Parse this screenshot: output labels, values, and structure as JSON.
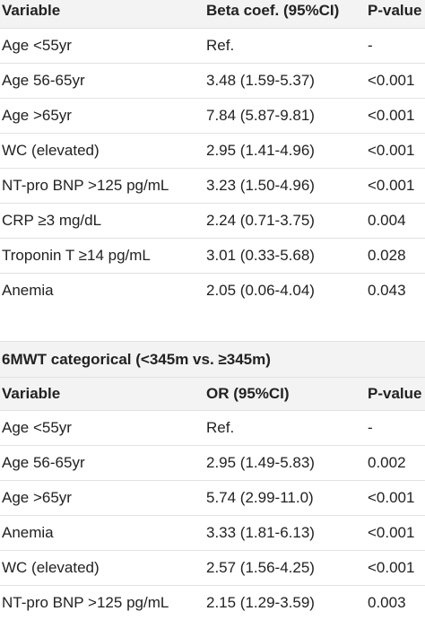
{
  "table1": {
    "header": [
      "Variable",
      "Beta coef. (95%CI)",
      "P-value"
    ],
    "rows": [
      [
        "Age <55yr",
        "Ref.",
        "-"
      ],
      [
        "Age 56-65yr",
        "3.48 (1.59-5.37)",
        "<0.001"
      ],
      [
        "Age >65yr",
        "7.84 (5.87-9.81)",
        "<0.001"
      ],
      [
        "WC (elevated)",
        "2.95 (1.41-4.96)",
        "<0.001"
      ],
      [
        "NT-pro BNP >125 pg/mL",
        "3.23 (1.50-4.96)",
        "<0.001"
      ],
      [
        "CRP ≥3 mg/dL",
        "2.24 (0.71-3.75)",
        "0.004"
      ],
      [
        "Troponin T ≥14 pg/mL",
        "3.01 (0.33-5.68)",
        "0.028"
      ],
      [
        "Anemia",
        "2.05 (0.06-4.04)",
        "0.043"
      ]
    ]
  },
  "table2": {
    "title": "6MWT categorical (<345m vs. ≥345m)",
    "header": [
      "Variable",
      "OR (95%CI)",
      "P-value"
    ],
    "rows": [
      [
        "Age <55yr",
        "Ref.",
        "-"
      ],
      [
        "Age 56-65yr",
        "2.95 (1.49-5.83)",
        "0.002"
      ],
      [
        "Age >65yr",
        "5.74 (2.99-11.0)",
        "<0.001"
      ],
      [
        "Anemia",
        "3.33 (1.81-6.13)",
        "<0.001"
      ],
      [
        "WC (elevated)",
        "2.57 (1.56-4.25)",
        "<0.001"
      ],
      [
        "NT-pro BNP >125 pg/mL",
        "2.15 (1.29-3.59)",
        "0.003"
      ]
    ]
  }
}
